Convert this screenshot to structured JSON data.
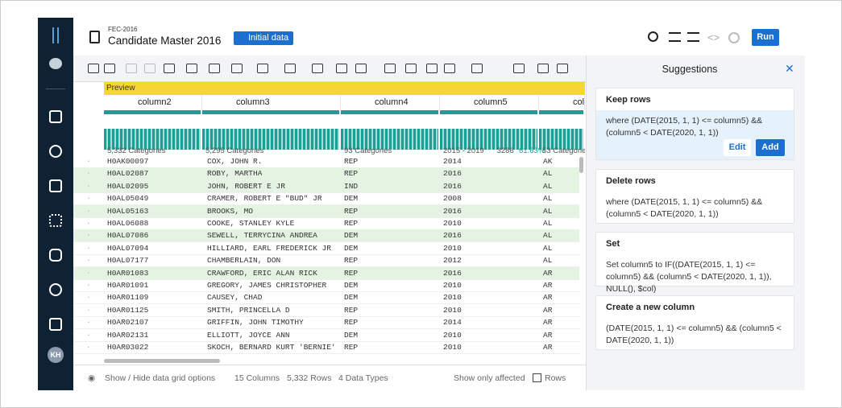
{
  "header": {
    "dataset": "FEC-2016",
    "title": "Candidate Master 2016",
    "badge": "Initial data",
    "run": "Run"
  },
  "avatar": "KH",
  "grid": {
    "preview": "Preview",
    "columns": [
      {
        "name": "column2",
        "stats": [
          "5,332 Categories"
        ]
      },
      {
        "name": "column3",
        "stats": [
          "5,295 Categories"
        ]
      },
      {
        "name": "column4",
        "stats": [
          "93 Categories"
        ]
      },
      {
        "name": "column5",
        "stats": [
          "2015 - 2019",
          "3286",
          "61.63%"
        ]
      },
      {
        "name": "col",
        "stats": [
          "53 Categories"
        ]
      }
    ],
    "rows": [
      {
        "cells": [
          "H0AK00097",
          "COX, JOHN R.",
          "REP",
          "2014",
          "AK"
        ]
      },
      {
        "cells": [
          "H0AL02087",
          "ROBY, MARTHA",
          "REP",
          "2016",
          "AL"
        ],
        "highlight": true
      },
      {
        "cells": [
          "H0AL02095",
          "JOHN, ROBERT E JR",
          "IND",
          "2016",
          "AL"
        ],
        "highlight": true
      },
      {
        "cells": [
          "H0AL05049",
          "CRAMER, ROBERT E \"BUD\" JR",
          "DEM",
          "2008",
          "AL"
        ]
      },
      {
        "cells": [
          "H0AL05163",
          "BROOKS, MO",
          "REP",
          "2016",
          "AL"
        ],
        "highlight": true
      },
      {
        "cells": [
          "H0AL06088",
          "COOKE, STANLEY KYLE",
          "REP",
          "2010",
          "AL"
        ]
      },
      {
        "cells": [
          "H0AL07086",
          "SEWELL, TERRYCINA ANDREA",
          "DEM",
          "2016",
          "AL"
        ],
        "highlight": true
      },
      {
        "cells": [
          "H0AL07094",
          "HILLIARD, EARL FREDERICK JR",
          "DEM",
          "2010",
          "AL"
        ]
      },
      {
        "cells": [
          "H0AL07177",
          "CHAMBERLAIN, DON",
          "REP",
          "2012",
          "AL"
        ]
      },
      {
        "cells": [
          "H0AR01083",
          "CRAWFORD, ERIC ALAN RICK",
          "REP",
          "2016",
          "AR"
        ],
        "highlight": true
      },
      {
        "cells": [
          "H0AR01091",
          "GREGORY, JAMES CHRISTOPHER",
          "DEM",
          "2010",
          "AR"
        ]
      },
      {
        "cells": [
          "H0AR01109",
          "CAUSEY, CHAD",
          "DEM",
          "2010",
          "AR"
        ]
      },
      {
        "cells": [
          "H0AR01125",
          "SMITH, PRINCELLA D",
          "REP",
          "2010",
          "AR"
        ]
      },
      {
        "cells": [
          "H0AR02107",
          "GRIFFIN, JOHN TIMOTHY",
          "REP",
          "2014",
          "AR"
        ]
      },
      {
        "cells": [
          "H0AR02131",
          "ELLIOTT, JOYCE ANN",
          "DEM",
          "2010",
          "AR"
        ]
      },
      {
        "cells": [
          "H0AR03022",
          "SKOCH, BERNARD KURT 'BERNIE'",
          "REP",
          "2010",
          "AR"
        ]
      }
    ]
  },
  "footer": {
    "options": "Show / Hide data grid options",
    "columns": "15 Columns",
    "rows": "5,332 Rows",
    "types": "4 Data Types",
    "affected": "Show only affected",
    "rows_toggle": "Rows"
  },
  "suggestions": {
    "title": "Suggestions",
    "cards": [
      {
        "title": "Keep rows",
        "text": "where (DATE(2015, 1, 1) <= column5) && (column5 < DATE(2020, 1, 1))",
        "buttons": [
          "Edit",
          "Add"
        ]
      },
      {
        "title": "Delete rows",
        "text": "where (DATE(2015, 1, 1) <= column5) && (column5 < DATE(2020, 1, 1))"
      },
      {
        "title": "Set",
        "text": "Set column5 to IF((DATE(2015, 1, 1) <= column5) && (column5 < DATE(2020, 1, 1)), NULL(), $col)"
      },
      {
        "title": "Create a new column",
        "text": "(DATE(2015, 1, 1) <= column5) && (column5 < DATE(2020, 1, 1))"
      }
    ]
  }
}
